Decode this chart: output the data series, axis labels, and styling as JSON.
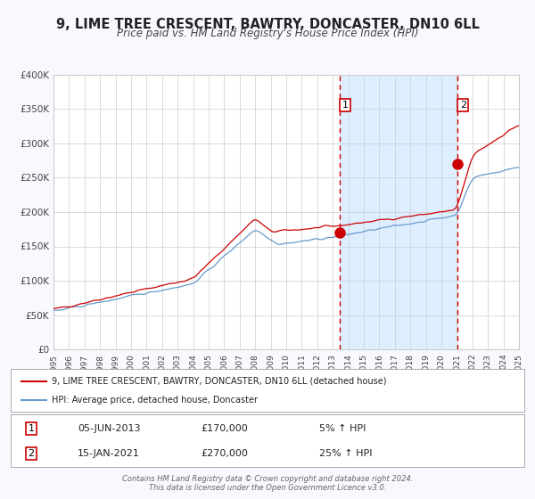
{
  "title": "9, LIME TREE CRESCENT, BAWTRY, DONCASTER, DN10 6LL",
  "subtitle": "Price paid vs. HM Land Registry's House Price Index (HPI)",
  "title_fontsize": 11,
  "subtitle_fontsize": 9,
  "xmin": 1995,
  "xmax": 2025,
  "ymin": 0,
  "ymax": 400000,
  "yticks": [
    0,
    50000,
    100000,
    150000,
    200000,
    250000,
    300000,
    350000,
    400000
  ],
  "ytick_labels": [
    "£0",
    "£50K",
    "£100K",
    "£150K",
    "£200K",
    "£250K",
    "£300K",
    "£350K",
    "£400K"
  ],
  "xticks": [
    1995,
    1996,
    1997,
    1998,
    1999,
    2000,
    2001,
    2002,
    2003,
    2004,
    2005,
    2006,
    2007,
    2008,
    2009,
    2010,
    2011,
    2012,
    2013,
    2014,
    2015,
    2016,
    2017,
    2018,
    2019,
    2020,
    2021,
    2022,
    2023,
    2024,
    2025
  ],
  "red_line_color": "#cc0000",
  "blue_line_color": "#6699cc",
  "background_color": "#f8f8ff",
  "plot_bg_color": "#ffffff",
  "shaded_region_color": "#ddeeff",
  "vline1_x": 2013.44,
  "vline2_x": 2021.04,
  "dot1_x": 2013.44,
  "dot1_y": 170000,
  "dot2_x": 2021.04,
  "dot2_y": 270000,
  "marker_color": "#cc0000",
  "legend_label_red": "9, LIME TREE CRESCENT, BAWTRY, DONCASTER, DN10 6LL (detached house)",
  "legend_label_blue": "HPI: Average price, detached house, Doncaster",
  "table_row1": [
    "1",
    "05-JUN-2013",
    "£170,000",
    "5% ↑ HPI"
  ],
  "table_row2": [
    "2",
    "15-JAN-2021",
    "£270,000",
    "25% ↑ HPI"
  ],
  "footer1": "Contains HM Land Registry data © Crown copyright and database right 2024.",
  "footer2": "This data is licensed under the Open Government Licence v3.0.",
  "grid_color": "#cccccc"
}
